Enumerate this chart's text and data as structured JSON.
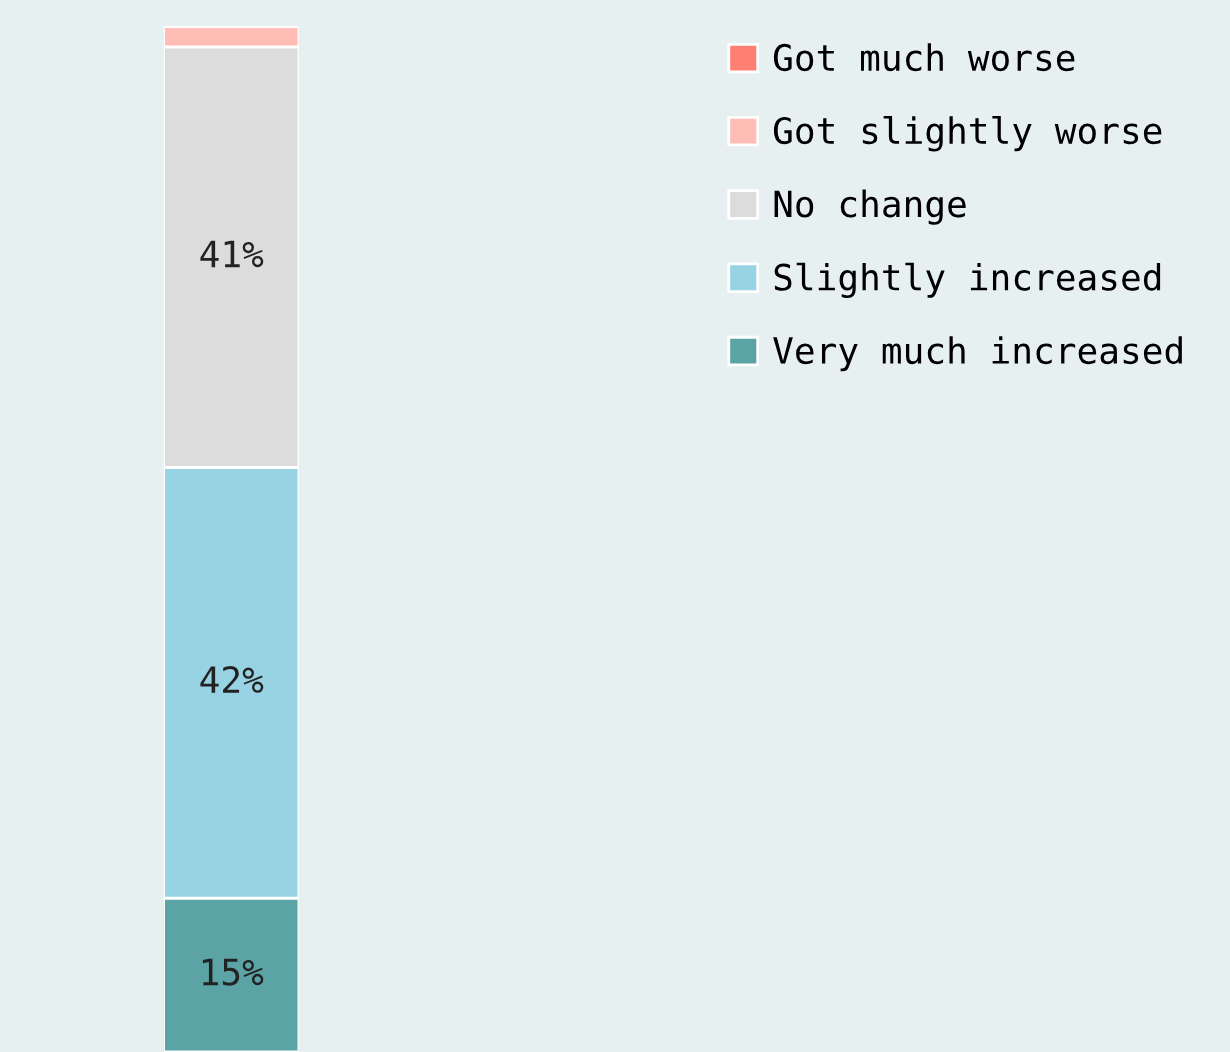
{
  "chart_data": {
    "type": "bar",
    "stacked": true,
    "categories": [
      null
    ],
    "legend": "top right",
    "grid": false,
    "series": [
      {
        "name": "Very much increased",
        "color": "#5ca3a5",
        "values": [
          15
        ],
        "value_labels": [
          "15%"
        ]
      },
      {
        "name": "Slightly increased",
        "color": "#97d3e3",
        "values": [
          42
        ],
        "value_labels": [
          "42%"
        ]
      },
      {
        "name": "No change",
        "color": "#dcdcdc",
        "values": [
          41
        ],
        "value_labels": [
          "41%"
        ]
      },
      {
        "name": "Got slightly worse",
        "color": "#ffbdb5",
        "values": [
          2
        ],
        "value_labels": [
          null
        ]
      },
      {
        "name": "Got much worse",
        "color": "#ff7f73",
        "values": [
          0
        ],
        "value_labels": [
          null
        ]
      }
    ]
  }
}
